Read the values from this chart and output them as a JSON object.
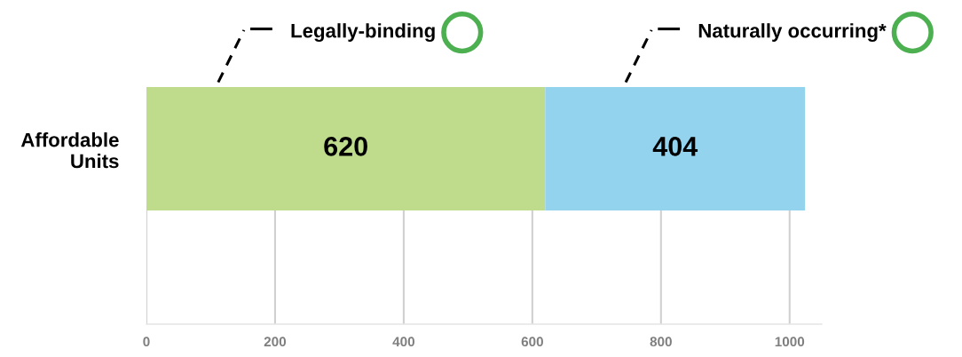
{
  "chart_data": {
    "type": "bar",
    "orientation": "horizontal",
    "stacked": true,
    "categories": [
      "Affordable\nUnits"
    ],
    "series": [
      {
        "name": "Legally-binding",
        "color": "#bedc8c",
        "values": [
          620
        ]
      },
      {
        "name": "Naturally occurring*",
        "color": "#93d3ee",
        "values": [
          404
        ]
      }
    ],
    "xlim": [
      0,
      1050
    ],
    "xticks": [
      0,
      200,
      400,
      600,
      800,
      1000
    ],
    "grid": "x",
    "data_labels": true,
    "legend": false
  }
}
